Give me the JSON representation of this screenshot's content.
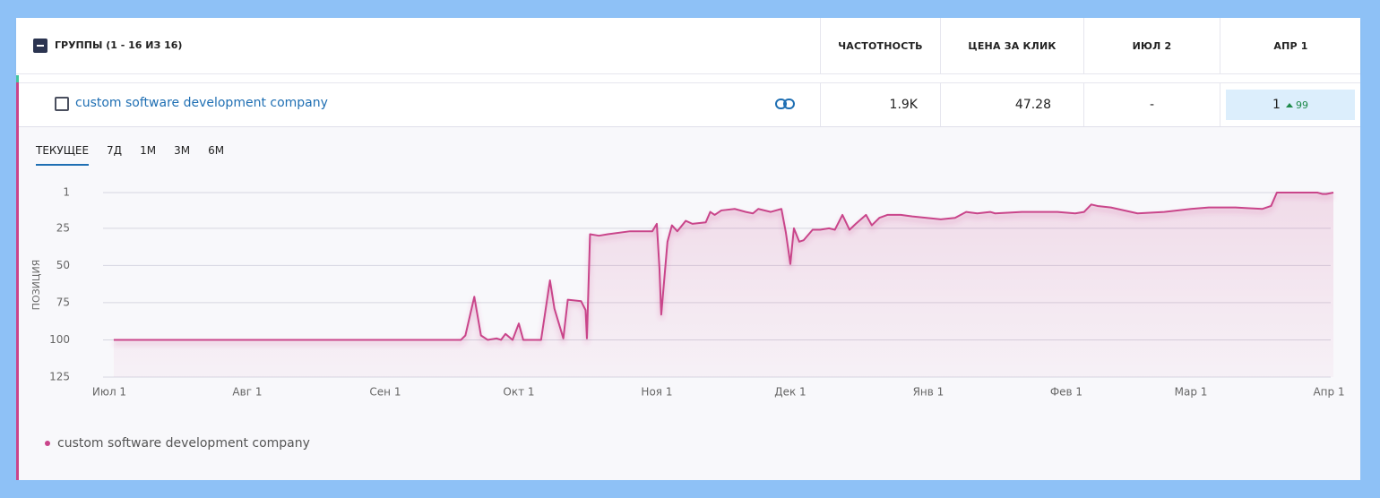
{
  "table": {
    "header": {
      "group": "ГРУППЫ (1 - 16 ИЗ 16)",
      "columns": [
        "ЧАСТОТНОСТЬ",
        "ЦЕНА ЗА КЛИК",
        "ИЮЛ 2",
        "АПР 1"
      ]
    },
    "row": {
      "keyword": "custom software development company",
      "cells": [
        "1.9K",
        "47.28",
        "-"
      ],
      "current": 1,
      "change": 99
    }
  },
  "tabs": [
    "ТЕКУЩЕЕ",
    "7Д",
    "1М",
    "3М",
    "6М"
  ],
  "chart_data": {
    "type": "line",
    "y_label": "ПОЗИЦИЯ",
    "ylim": [
      125,
      1
    ],
    "yticks": [
      1,
      25,
      50,
      75,
      100,
      125
    ],
    "xlim": [
      -1,
      275
    ],
    "xticks": [
      {
        "value": 0,
        "label": "Июл 1"
      },
      {
        "value": 31,
        "label": "Авг 1"
      },
      {
        "value": 62,
        "label": "Сен 1"
      },
      {
        "value": 92,
        "label": "Окт 1"
      },
      {
        "value": 123,
        "label": "Ноя 1"
      },
      {
        "value": 153,
        "label": "Дек 1"
      },
      {
        "value": 184,
        "label": "Янв 1"
      },
      {
        "value": 215,
        "label": "Фев 1"
      },
      {
        "value": 243,
        "label": "Мар 1"
      },
      {
        "value": 274,
        "label": "Апр 1"
      }
    ],
    "grid": true,
    "x": [
      1,
      79,
      80,
      82,
      83.5,
      85,
      87,
      88,
      89,
      90.6,
      92,
      93,
      97,
      99,
      100,
      102,
      103,
      106,
      107,
      107.3,
      108,
      110,
      112,
      117,
      122,
      123,
      123.6,
      124,
      125.4,
      126.4,
      127.6,
      129.5,
      131,
      134,
      135,
      136,
      137.5,
      140.5,
      143,
      144.6,
      145.8,
      148.6,
      151,
      152,
      153,
      153.8,
      155,
      156,
      158,
      159.7,
      161.7,
      163,
      164.7,
      166.3,
      167.7,
      170,
      171.3,
      173,
      174.8,
      177.8,
      180.4,
      186.8,
      190,
      192.5,
      195,
      197.9,
      199,
      205,
      211,
      213,
      217,
      219,
      220.6,
      222,
      225,
      231,
      237,
      243,
      247,
      253,
      259,
      261,
      262.3,
      271.4,
      272.6,
      273.4,
      275
    ],
    "series": [
      {
        "name": "custom software development company",
        "color": "#c9448a",
        "values": [
          100,
          100,
          97,
          71,
          97,
          100,
          99,
          100,
          96,
          100,
          89,
          100,
          100,
          60,
          79,
          99,
          73,
          74,
          80,
          99,
          29,
          30,
          29,
          27,
          27,
          22,
          52,
          83,
          34,
          23,
          27,
          20,
          22,
          21,
          14,
          16,
          13,
          12,
          14,
          15,
          12,
          14,
          12,
          28,
          49,
          25,
          34,
          33,
          26,
          26,
          25,
          26,
          16,
          26,
          22,
          16,
          23,
          18,
          16,
          16,
          17,
          19,
          18,
          14,
          15,
          14,
          15,
          14,
          14,
          14,
          15,
          14,
          9,
          10,
          11,
          15,
          14,
          12,
          11,
          11,
          12,
          10,
          1,
          1,
          2,
          2,
          1
        ]
      }
    ]
  }
}
